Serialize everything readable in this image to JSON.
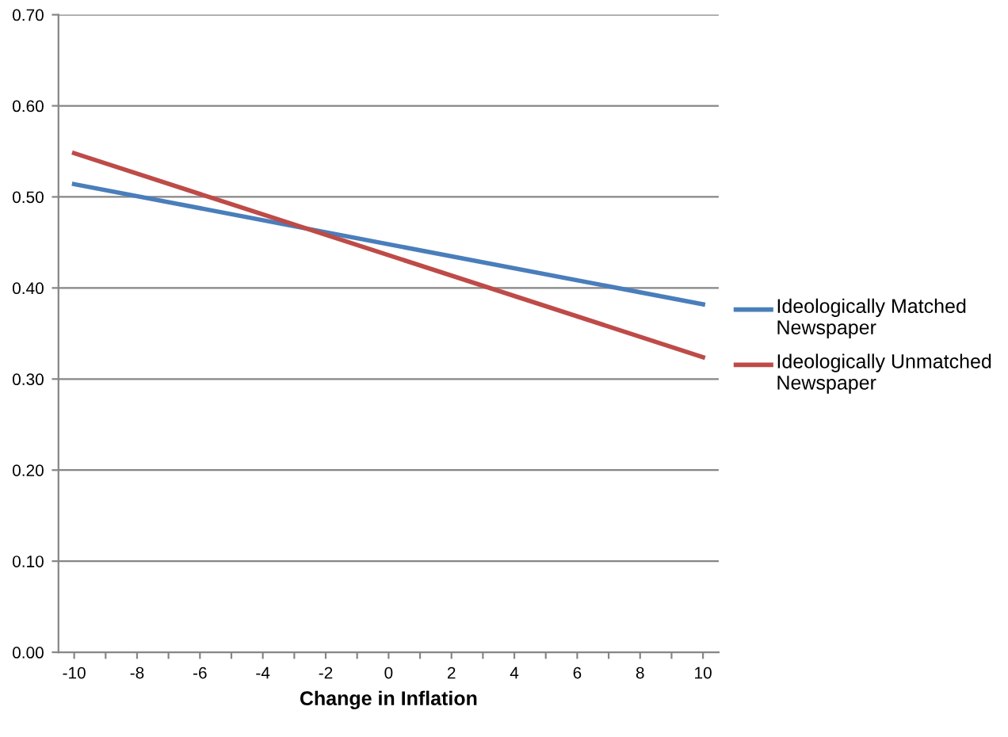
{
  "chart_data": {
    "type": "line",
    "xlabel": "Change in Inflation",
    "x": [
      -10,
      10
    ],
    "series": [
      {
        "name": "Ideologically Matched Newspaper",
        "color": "#4a7ebb",
        "values": [
          0.514,
          0.382
        ]
      },
      {
        "name": "Ideologically Unmatched Newspaper",
        "color": "#be4b48",
        "values": [
          0.548,
          0.324
        ]
      }
    ],
    "xlim": [
      -10.5,
      10.5
    ],
    "xticks": [
      -10,
      {
        "value": -9,
        "label": null
      },
      -8,
      {
        "value": -7,
        "label": null
      },
      -6,
      {
        "value": -5,
        "label": null
      },
      -4,
      {
        "value": -3,
        "label": null
      },
      -2,
      {
        "value": -1,
        "label": null
      },
      0,
      {
        "value": 1,
        "label": null
      },
      2,
      {
        "value": 3,
        "label": null
      },
      4,
      {
        "value": 5,
        "label": null
      },
      6,
      {
        "value": 7,
        "label": null
      },
      8,
      {
        "value": 9,
        "label": null
      },
      10
    ],
    "ylim": [
      0,
      0.7
    ],
    "yticks": [
      {
        "value": 0,
        "label": "0.00"
      },
      {
        "value": 0.1,
        "label": "0.10"
      },
      {
        "value": 0.2,
        "label": "0.20"
      },
      {
        "value": 0.3,
        "label": "0.30"
      },
      {
        "value": 0.4,
        "label": "0.40"
      },
      {
        "value": 0.5,
        "label": "0.50"
      },
      {
        "value": 0.6,
        "label": "0.60"
      },
      {
        "value": 0.7,
        "label": "0.70"
      }
    ],
    "grid": "y",
    "legend": "right",
    "marker": "none",
    "line_style": "solid"
  }
}
